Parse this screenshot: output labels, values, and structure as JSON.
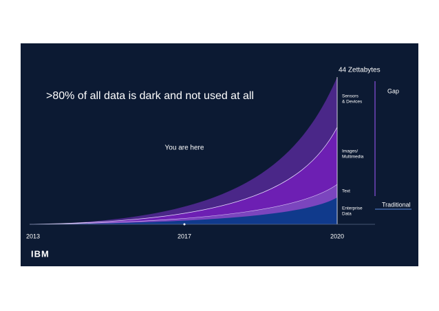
{
  "slide": {
    "title": ">80% of all data is dark and not used at all",
    "marker_label": "You are here",
    "total_label": "44 Zettabytes",
    "layers": [
      {
        "lines": [
          "Sensors",
          "& Devices"
        ]
      },
      {
        "lines": [
          "Images/",
          "Multimedia"
        ]
      },
      {
        "lines": [
          "Text"
        ]
      },
      {
        "lines": [
          "Enterprise",
          "Data"
        ]
      }
    ],
    "gap_label": "Gap",
    "traditional_label": "Traditional",
    "years": [
      "2013",
      "2017",
      "2020"
    ],
    "logo": "IBM"
  }
}
